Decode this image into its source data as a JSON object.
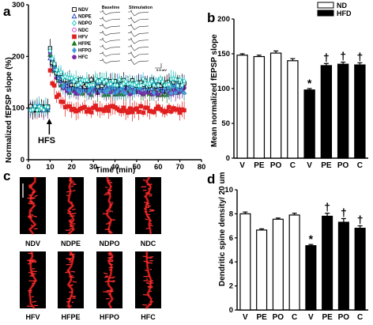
{
  "panels": {
    "a": "a",
    "b": "b",
    "c": "c",
    "d": "d"
  },
  "chart_data": [
    {
      "panel": "a",
      "type": "scatter",
      "xlabel": "Time (min)",
      "ylabel": "Normalized fEPSP slope (%)",
      "xlim": [
        0,
        80
      ],
      "ylim": [
        0,
        300
      ],
      "xticks": [
        "0",
        "10",
        "20",
        "30",
        "40",
        "50",
        "60",
        "70",
        "80"
      ],
      "yticks": [
        "0",
        "100",
        "200",
        "300"
      ],
      "annotation": "HFS",
      "annotation_x": 10,
      "inset_headers": {
        "baseline": "Baseline",
        "stimulation": "Stimulation",
        "scale": "0.5 mV"
      },
      "legend_position": "top",
      "series": [
        {
          "name": "NDV",
          "color": "#000000",
          "marker": "square-open",
          "peak": 160,
          "plateau": 148
        },
        {
          "name": "NDPE",
          "color": "#1f3fbf",
          "marker": "triangle-open",
          "peak": 150,
          "plateau": 145
        },
        {
          "name": "NDPO",
          "color": "#16c7c0",
          "marker": "diamond-open",
          "peak": 155,
          "plateau": 150
        },
        {
          "name": "NDC",
          "color": "#cc33cc",
          "marker": "circle-open",
          "peak": 148,
          "plateau": 140
        },
        {
          "name": "HFV",
          "color": "#e02020",
          "marker": "square",
          "peak": 110,
          "plateau": 98
        },
        {
          "name": "HFPE",
          "color": "#1e7a1e",
          "marker": "triangle",
          "peak": 140,
          "plateau": 132
        },
        {
          "name": "HFPO",
          "color": "#4a9ad8",
          "marker": "diamond",
          "peak": 142,
          "plateau": 135
        },
        {
          "name": "HFC",
          "color": "#7a2aa0",
          "marker": "circle",
          "peak": 140,
          "plateau": 133
        }
      ]
    },
    {
      "panel": "b",
      "type": "bar",
      "ylabel": "Mean normalized fEPSP slope",
      "ylim": [
        0,
        200
      ],
      "yticks": [
        "0",
        "50",
        "100",
        "150",
        "200"
      ],
      "categories": [
        "V",
        "PE",
        "PO",
        "C",
        "V",
        "PE",
        "PO",
        "C"
      ],
      "groups": [
        "ND",
        "ND",
        "ND",
        "ND",
        "HFD",
        "HFD",
        "HFD",
        "HFD"
      ],
      "values": [
        148,
        146,
        151,
        140,
        98,
        133,
        135,
        134
      ],
      "errors": [
        2,
        2,
        3,
        3,
        2,
        3,
        3,
        3
      ],
      "markers": [
        "",
        "",
        "",
        "",
        "*",
        "†",
        "†",
        "†"
      ],
      "legend": [
        "ND",
        "HFD"
      ],
      "legend_position": "top-right"
    },
    {
      "panel": "d",
      "type": "bar",
      "ylabel": "Dendritic spine density/ 20 um",
      "ylim": [
        0,
        10
      ],
      "yticks": [
        "0",
        "2",
        "4",
        "6",
        "8",
        "10"
      ],
      "categories": [
        "V",
        "PE",
        "PO",
        "C",
        "V",
        "PE",
        "PO",
        "C"
      ],
      "groups": [
        "ND",
        "ND",
        "ND",
        "ND",
        "HFD",
        "HFD",
        "HFD",
        "HFD"
      ],
      "values": [
        8.0,
        6.65,
        7.55,
        7.9,
        5.35,
        7.8,
        7.3,
        6.8
      ],
      "errors": [
        0.15,
        0.1,
        0.1,
        0.15,
        0.1,
        0.25,
        0.3,
        0.2
      ],
      "markers": [
        "",
        "",
        "",
        "",
        "*",
        "†",
        "†",
        "†"
      ]
    }
  ],
  "micrographs": {
    "top": [
      "NDV",
      "NDPE",
      "NDPO",
      "NDC"
    ],
    "bottom": [
      "HFV",
      "HFPE",
      "HFPO",
      "HFC"
    ]
  }
}
